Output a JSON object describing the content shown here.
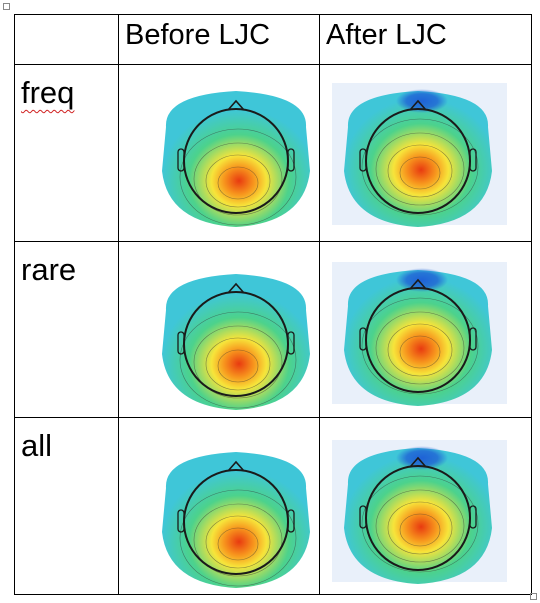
{
  "header": {
    "before_label": "Before LJC",
    "after_label": "After LJC"
  },
  "rows": [
    {
      "label": "freq"
    },
    {
      "label": "rare"
    },
    {
      "label": "all"
    }
  ],
  "colors": {
    "scalp_bg": "#e9f0fa",
    "red": "#e83a10",
    "orange": "#f7941d",
    "yellow": "#f7e43a",
    "green": "#4cd28c",
    "cyan": "#3fc6d8",
    "blue": "#1f62d6",
    "outline": "#1a1a1a"
  }
}
